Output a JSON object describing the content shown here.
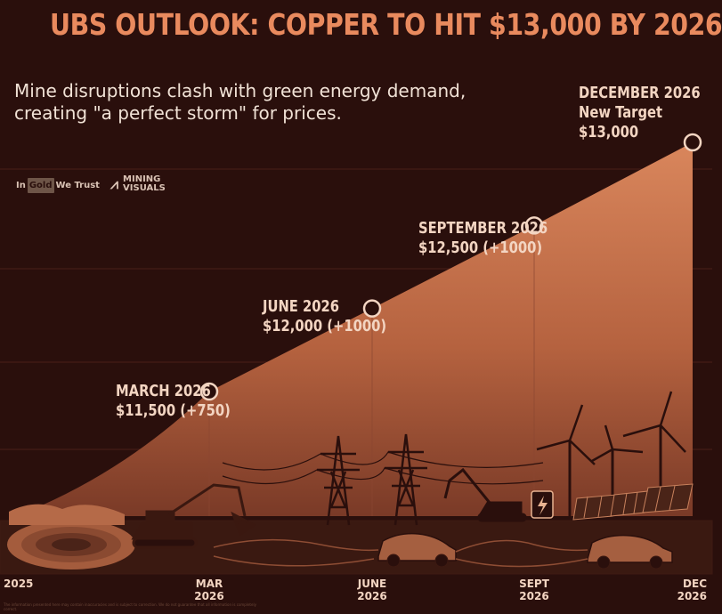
{
  "chart_data": {
    "type": "area",
    "title": "UBS OUTLOOK: COPPER TO HIT $13,000 BY 2026",
    "subtitle_lines": [
      "Mine disruptions clash with green energy demand,",
      "creating \"a perfect storm\" for prices."
    ],
    "x_ticks": [
      {
        "line1": "2025",
        "line2": ""
      },
      {
        "line1": "MAR",
        "line2": "2026"
      },
      {
        "line1": "JUNE",
        "line2": "2026"
      },
      {
        "line1": "SEPT",
        "line2": "2026"
      },
      {
        "line1": "DEC",
        "line2": "2026"
      }
    ],
    "points": [
      {
        "x": 0,
        "value": 10750,
        "marker": false,
        "label_lines": []
      },
      {
        "x": 1,
        "value": 11500,
        "marker": true,
        "label_lines": [
          "MARCH 2026",
          "$11,500 (+750)"
        ]
      },
      {
        "x": 2,
        "value": 12000,
        "marker": true,
        "label_lines": [
          "JUNE 2026",
          "$12,000 (+1000)"
        ]
      },
      {
        "x": 3,
        "value": 12500,
        "marker": true,
        "label_lines": [
          "SEPTEMBER 2026",
          "$12,500 (+1000)"
        ]
      },
      {
        "x": 4,
        "value": 13000,
        "marker": true,
        "label_lines": [
          "DECEMBER 2026",
          "New Target",
          "$13,000"
        ]
      }
    ],
    "ylim": [
      10750,
      13000
    ],
    "grid": true,
    "colors": {
      "background": "#2a0f0c",
      "area_top": "#c8754f",
      "area_bottom": "#7a3a27",
      "accent": "#e98a5e",
      "label": "#f3d5c2",
      "marker_stroke": "#f3d5c2",
      "marker_fill": "#2a0f0c"
    }
  },
  "brands": {
    "ingold_in": "In",
    "ingold_gold": "Gold",
    "ingold_trust": "We Trust",
    "mining_line1": "MINING",
    "mining_line2": "VISUALS"
  },
  "footnote": "The information presented here may contain inaccuracies and is subject to correction. We do not guarantee that all information is completely correct."
}
